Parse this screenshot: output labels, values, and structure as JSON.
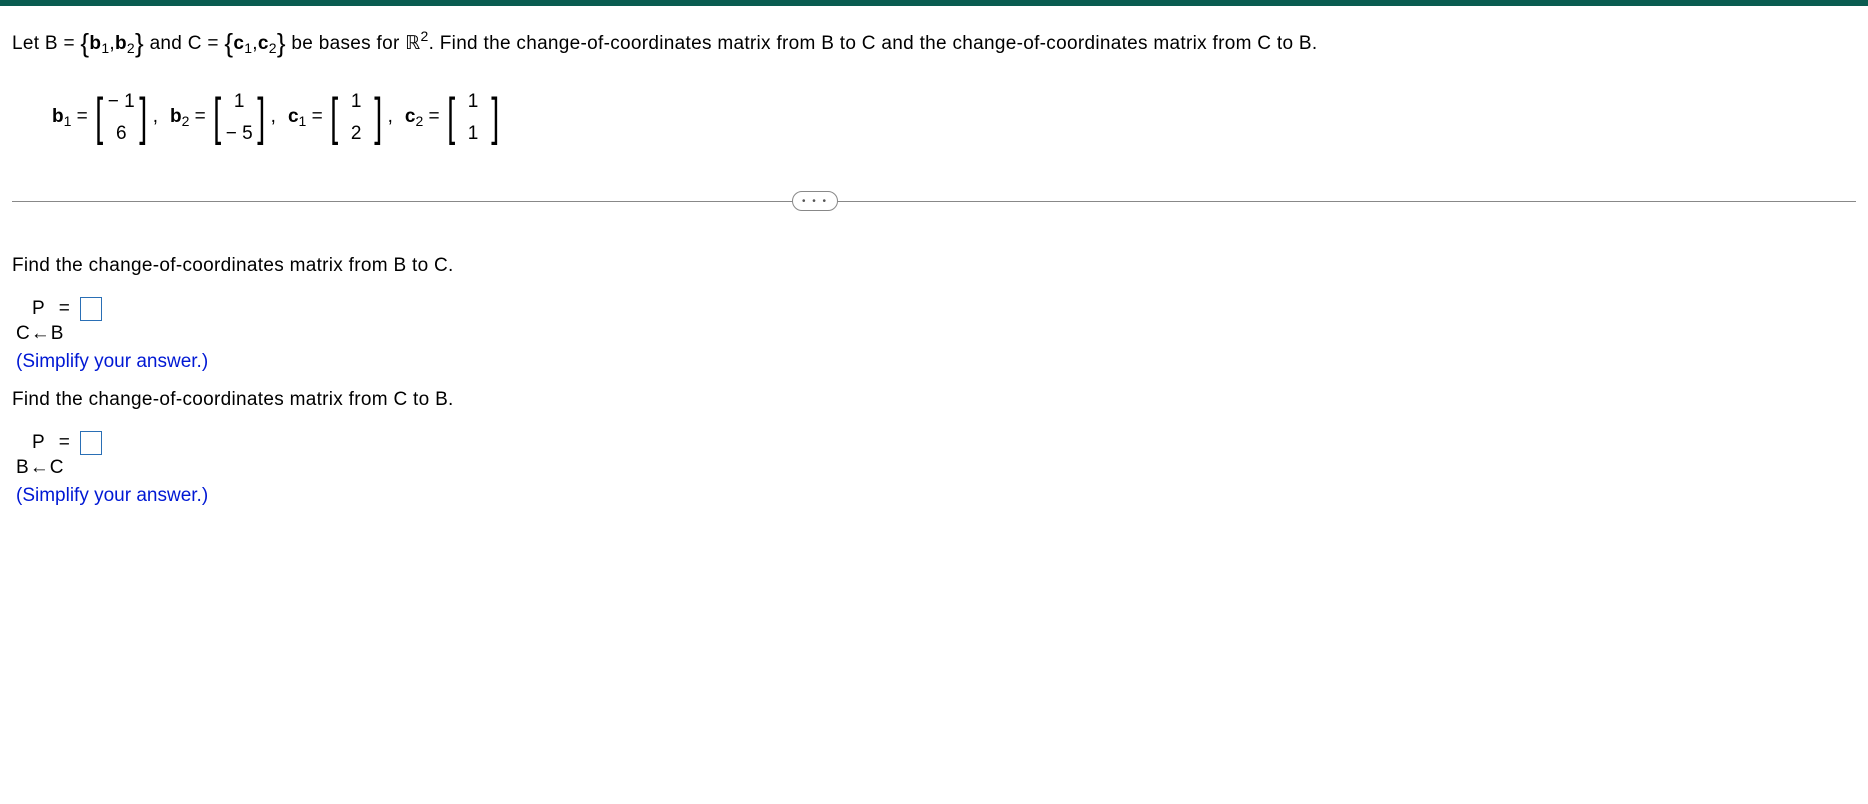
{
  "problem": {
    "prefix": "Let B = ",
    "set_open": "{",
    "b1": "b",
    "b1_sub": "1",
    "sep": ",",
    "b2": "b",
    "b2_sub": "2",
    "set_close": "}",
    "mid1": " and C = ",
    "c1": "c",
    "c1_sub": "1",
    "c2": "c",
    "c2_sub": "2",
    "mid2": " be bases for ",
    "R": "ℝ",
    "R_sup": "2",
    "suffix": ". Find the change-of-coordinates matrix from B to C and the change-of-coordinates matrix from C to B."
  },
  "vectors": {
    "b1_label": "b",
    "b1_sub": "1",
    "eq": " = ",
    "b1_top": "− 1",
    "b1_bot": "6",
    "b2_label": "b",
    "b2_sub": "2",
    "b2_top": "1",
    "b2_bot": "− 5",
    "c1_label": "c",
    "c1_sub": "1",
    "c1_top": "1",
    "c1_bot": "2",
    "c2_label": "c",
    "c2_sub": "2",
    "c2_top": "1",
    "c2_bot": "1",
    "comma": ","
  },
  "part1": {
    "prompt": "Find the change-of-coordinates matrix from B to C.",
    "P": "P",
    "eq": "=",
    "sub_from": "C",
    "arrow": "←",
    "sub_to": "B",
    "simplify": "(Simplify your answer.)"
  },
  "part2": {
    "prompt": "Find the change-of-coordinates matrix from C to B.",
    "P": "P",
    "eq": "=",
    "sub_from": "B",
    "arrow": "←",
    "sub_to": "C",
    "simplify": "(Simplify your answer.)"
  },
  "ellipsis": "• • •"
}
